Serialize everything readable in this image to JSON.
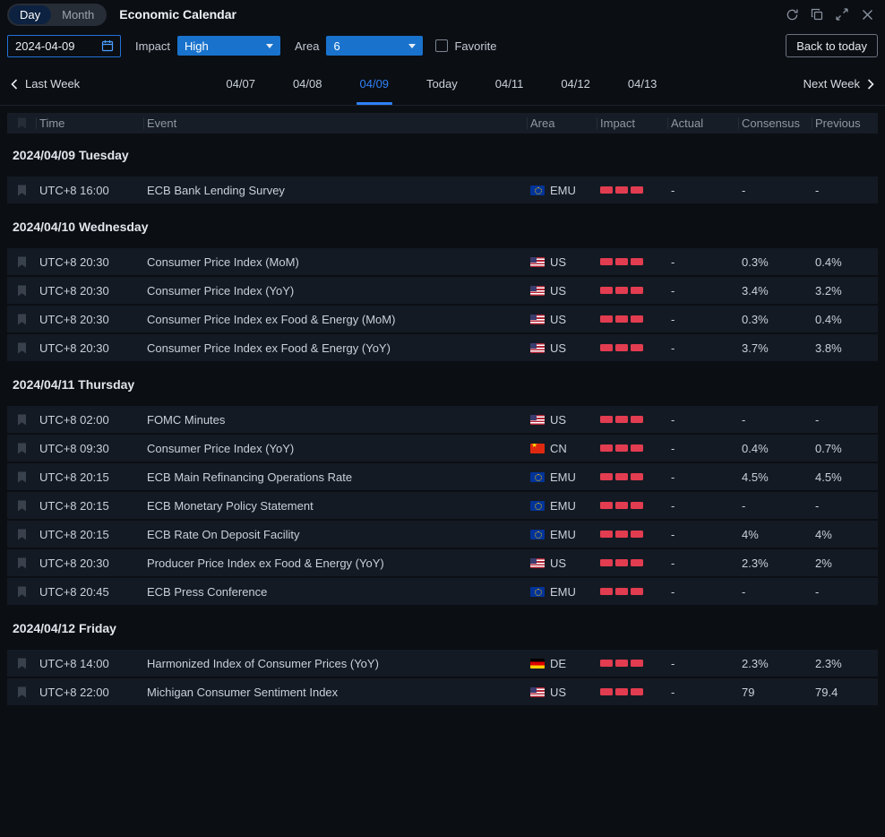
{
  "colors": {
    "accent_blue": "#2f81f7",
    "dropdown_blue": "#1973cd",
    "impact_red": "#e23c50",
    "background": "#0b0e13",
    "row_background": "#141a23"
  },
  "titlebar": {
    "view_tabs": [
      {
        "label": "Day",
        "active": true
      },
      {
        "label": "Month",
        "active": false
      }
    ],
    "title": "Economic Calendar",
    "window_icons": [
      "refresh-icon",
      "popout-icon",
      "fullscreen-icon",
      "close-icon"
    ]
  },
  "filters": {
    "date_value": "2024-04-09",
    "impact_label": "Impact",
    "impact_value": "High",
    "area_label": "Area",
    "area_value": "6",
    "favorite_label": "Favorite",
    "favorite_checked": false,
    "back_to_today_label": "Back to today"
  },
  "week_nav": {
    "prev_label": "Last Week",
    "next_label": "Next Week",
    "days": [
      {
        "label": "04/07",
        "active": false
      },
      {
        "label": "04/08",
        "active": false
      },
      {
        "label": "04/09",
        "active": true
      },
      {
        "label": "Today",
        "active": false
      },
      {
        "label": "04/11",
        "active": false
      },
      {
        "label": "04/12",
        "active": false
      },
      {
        "label": "04/13",
        "active": false
      }
    ]
  },
  "table": {
    "headers": [
      "Time",
      "Event",
      "Area",
      "Impact",
      "Actual",
      "Consensus",
      "Previous"
    ],
    "groups": [
      {
        "date": "2024/04/09 Tuesday",
        "rows": [
          {
            "time": "UTC+8 16:00",
            "event": "ECB Bank Lending Survey",
            "area": "EMU",
            "flag": "eu",
            "impact": 3,
            "actual": "-",
            "consensus": "-",
            "previous": "-"
          }
        ]
      },
      {
        "date": "2024/04/10 Wednesday",
        "rows": [
          {
            "time": "UTC+8 20:30",
            "event": "Consumer Price Index (MoM)",
            "area": "US",
            "flag": "us",
            "impact": 3,
            "actual": "-",
            "consensus": "0.3%",
            "previous": "0.4%"
          },
          {
            "time": "UTC+8 20:30",
            "event": "Consumer Price Index (YoY)",
            "area": "US",
            "flag": "us",
            "impact": 3,
            "actual": "-",
            "consensus": "3.4%",
            "previous": "3.2%"
          },
          {
            "time": "UTC+8 20:30",
            "event": "Consumer Price Index ex Food & Energy (MoM)",
            "area": "US",
            "flag": "us",
            "impact": 3,
            "actual": "-",
            "consensus": "0.3%",
            "previous": "0.4%"
          },
          {
            "time": "UTC+8 20:30",
            "event": "Consumer Price Index ex Food & Energy (YoY)",
            "area": "US",
            "flag": "us",
            "impact": 3,
            "actual": "-",
            "consensus": "3.7%",
            "previous": "3.8%"
          }
        ]
      },
      {
        "date": "2024/04/11 Thursday",
        "rows": [
          {
            "time": "UTC+8 02:00",
            "event": "FOMC Minutes",
            "area": "US",
            "flag": "us",
            "impact": 3,
            "actual": "-",
            "consensus": "-",
            "previous": "-"
          },
          {
            "time": "UTC+8 09:30",
            "event": "Consumer Price Index (YoY)",
            "area": "CN",
            "flag": "cn",
            "impact": 3,
            "actual": "-",
            "consensus": "0.4%",
            "previous": "0.7%"
          },
          {
            "time": "UTC+8 20:15",
            "event": "ECB Main Refinancing Operations Rate",
            "area": "EMU",
            "flag": "eu",
            "impact": 3,
            "actual": "-",
            "consensus": "4.5%",
            "previous": "4.5%"
          },
          {
            "time": "UTC+8 20:15",
            "event": "ECB Monetary Policy Statement",
            "area": "EMU",
            "flag": "eu",
            "impact": 3,
            "actual": "-",
            "consensus": "-",
            "previous": "-"
          },
          {
            "time": "UTC+8 20:15",
            "event": "ECB Rate On Deposit Facility",
            "area": "EMU",
            "flag": "eu",
            "impact": 3,
            "actual": "-",
            "consensus": "4%",
            "previous": "4%"
          },
          {
            "time": "UTC+8 20:30",
            "event": "Producer Price Index ex Food & Energy (YoY)",
            "area": "US",
            "flag": "us",
            "impact": 3,
            "actual": "-",
            "consensus": "2.3%",
            "previous": "2%"
          },
          {
            "time": "UTC+8 20:45",
            "event": "ECB Press Conference",
            "area": "EMU",
            "flag": "eu",
            "impact": 3,
            "actual": "-",
            "consensus": "-",
            "previous": "-"
          }
        ]
      },
      {
        "date": "2024/04/12 Friday",
        "rows": [
          {
            "time": "UTC+8 14:00",
            "event": "Harmonized Index of Consumer Prices (YoY)",
            "area": "DE",
            "flag": "de",
            "impact": 3,
            "actual": "-",
            "consensus": "2.3%",
            "previous": "2.3%"
          },
          {
            "time": "UTC+8 22:00",
            "event": "Michigan Consumer Sentiment Index",
            "area": "US",
            "flag": "us",
            "impact": 3,
            "actual": "-",
            "consensus": "79",
            "previous": "79.4"
          }
        ]
      }
    ]
  }
}
